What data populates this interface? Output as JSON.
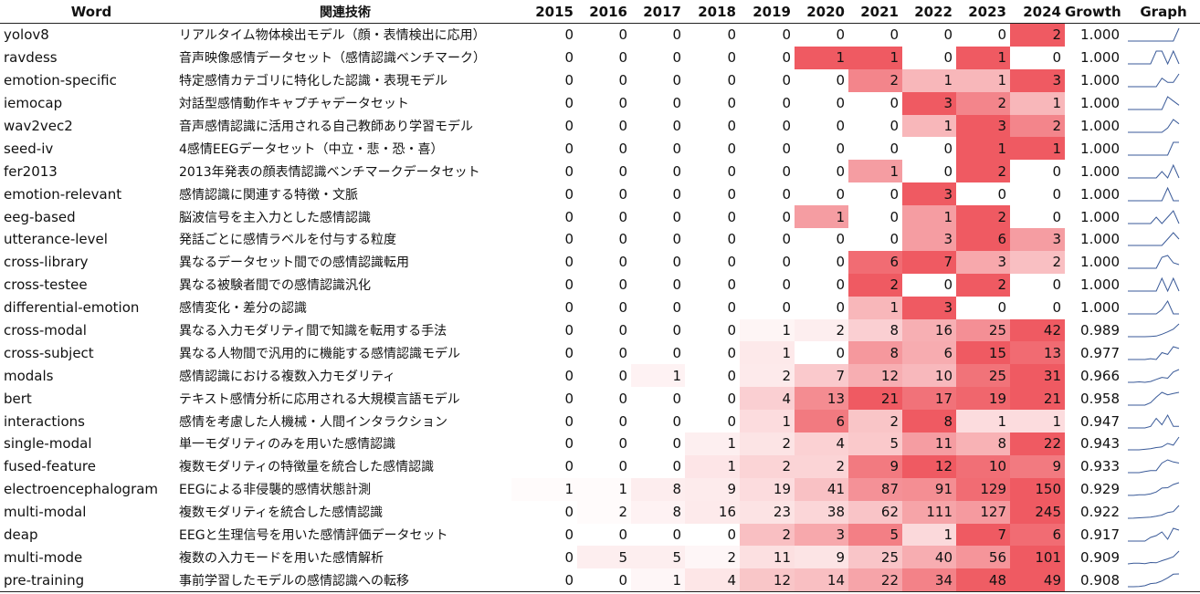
{
  "headers": {
    "word": "Word",
    "tech": "関連技術",
    "years": [
      "2015",
      "2016",
      "2017",
      "2018",
      "2019",
      "2020",
      "2021",
      "2022",
      "2023",
      "2024"
    ],
    "growth": "Growth",
    "graph": "Graph"
  },
  "colors": {
    "heat_max": "#ef5a62",
    "heat_min": "#ffffff",
    "spark": "#3a5a98"
  },
  "rows": [
    {
      "word": "yolov8",
      "tech": "リアルタイム物体検出モデル（顔・表情検出に応用）",
      "values": [
        0,
        0,
        0,
        0,
        0,
        0,
        0,
        0,
        0,
        2
      ],
      "growth": "1.000"
    },
    {
      "word": "ravdess",
      "tech": "音声映像感情データセット（感情認識ベンチマーク）",
      "values": [
        0,
        0,
        0,
        0,
        0,
        1,
        1,
        0,
        1,
        0
      ],
      "growth": "1.000"
    },
    {
      "word": "emotion-specific",
      "tech": "特定感情カテゴリに特化した認識・表現モデル",
      "values": [
        0,
        0,
        0,
        0,
        0,
        0,
        2,
        1,
        1,
        3
      ],
      "growth": "1.000"
    },
    {
      "word": "iemocap",
      "tech": "対話型感情動作キャプチャデータセット",
      "values": [
        0,
        0,
        0,
        0,
        0,
        0,
        0,
        3,
        2,
        1
      ],
      "growth": "1.000"
    },
    {
      "word": "wav2vec2",
      "tech": "音声感情認識に活用される自己教師あり学習モデル",
      "values": [
        0,
        0,
        0,
        0,
        0,
        0,
        0,
        1,
        3,
        2
      ],
      "growth": "1.000"
    },
    {
      "word": "seed-iv",
      "tech": "4感情EEGデータセット（中立・悲・恐・喜）",
      "values": [
        0,
        0,
        0,
        0,
        0,
        0,
        0,
        0,
        1,
        1
      ],
      "growth": "1.000"
    },
    {
      "word": "fer2013",
      "tech": "2013年発表の顔表情認識ベンチマークデータセット",
      "values": [
        0,
        0,
        0,
        0,
        0,
        0,
        1,
        0,
        2,
        0
      ],
      "growth": "1.000"
    },
    {
      "word": "emotion-relevant",
      "tech": "感情認識に関連する特徴・文脈",
      "values": [
        0,
        0,
        0,
        0,
        0,
        0,
        0,
        3,
        0,
        0
      ],
      "growth": "1.000"
    },
    {
      "word": "eeg-based",
      "tech": "脳波信号を主入力とした感情認識",
      "values": [
        0,
        0,
        0,
        0,
        0,
        1,
        0,
        1,
        2,
        0
      ],
      "growth": "1.000"
    },
    {
      "word": "utterance-level",
      "tech": "発話ごとに感情ラベルを付与する粒度",
      "values": [
        0,
        0,
        0,
        0,
        0,
        0,
        0,
        3,
        6,
        3
      ],
      "growth": "1.000"
    },
    {
      "word": "cross-library",
      "tech": "異なるデータセット間での感情認識転用",
      "values": [
        0,
        0,
        0,
        0,
        0,
        0,
        6,
        7,
        3,
        2
      ],
      "growth": "1.000"
    },
    {
      "word": "cross-testee",
      "tech": "異なる被験者間での感情認識汎化",
      "values": [
        0,
        0,
        0,
        0,
        0,
        0,
        2,
        0,
        2,
        0
      ],
      "growth": "1.000"
    },
    {
      "word": "differential-emotion",
      "tech": "感情変化・差分の認識",
      "values": [
        0,
        0,
        0,
        0,
        0,
        0,
        1,
        3,
        0,
        0
      ],
      "growth": "1.000"
    },
    {
      "word": "cross-modal",
      "tech": "異なる入力モダリティ間で知識を転用する手法",
      "values": [
        0,
        0,
        0,
        0,
        1,
        2,
        8,
        16,
        25,
        42
      ],
      "growth": "0.989"
    },
    {
      "word": "cross-subject",
      "tech": "異なる人物間で汎用的に機能する感情認識モデル",
      "values": [
        0,
        0,
        0,
        0,
        1,
        0,
        8,
        6,
        15,
        13
      ],
      "growth": "0.977"
    },
    {
      "word": "modals",
      "tech": "感情認識における複数入力モダリティ",
      "values": [
        0,
        0,
        1,
        0,
        2,
        7,
        12,
        10,
        25,
        31
      ],
      "growth": "0.966"
    },
    {
      "word": "bert",
      "tech": "テキスト感情分析に応用される大規模言語モデル",
      "values": [
        0,
        0,
        0,
        0,
        4,
        13,
        21,
        17,
        19,
        21
      ],
      "growth": "0.958"
    },
    {
      "word": "interactions",
      "tech": "感情を考慮した人機械・人間インタラクション",
      "values": [
        0,
        0,
        0,
        0,
        1,
        6,
        2,
        8,
        1,
        1
      ],
      "growth": "0.947"
    },
    {
      "word": "single-modal",
      "tech": "単一モダリティのみを用いた感情認識",
      "values": [
        0,
        0,
        0,
        1,
        2,
        4,
        5,
        11,
        8,
        22
      ],
      "growth": "0.943"
    },
    {
      "word": "fused-feature",
      "tech": "複数モダリティの特徴量を統合した感情認識",
      "values": [
        0,
        0,
        0,
        1,
        2,
        2,
        9,
        12,
        10,
        9
      ],
      "growth": "0.933"
    },
    {
      "word": "electroencephalogram",
      "tech": "EEGによる非侵襲的感情状態計測",
      "values": [
        1,
        1,
        8,
        9,
        19,
        41,
        87,
        91,
        129,
        150
      ],
      "growth": "0.929"
    },
    {
      "word": "multi-modal",
      "tech": "複数モダリティを統合した感情認識",
      "values": [
        0,
        2,
        8,
        16,
        23,
        38,
        62,
        111,
        127,
        245
      ],
      "growth": "0.922"
    },
    {
      "word": "deap",
      "tech": "EEGと生理信号を用いた感情評価データセット",
      "values": [
        0,
        0,
        0,
        0,
        2,
        3,
        5,
        1,
        7,
        6
      ],
      "growth": "0.917"
    },
    {
      "word": "multi-mode",
      "tech": "複数の入力モードを用いた感情解析",
      "values": [
        0,
        5,
        5,
        2,
        11,
        9,
        25,
        40,
        56,
        101
      ],
      "growth": "0.909"
    },
    {
      "word": "pre-training",
      "tech": "事前学習したモデルの感情認識への転移",
      "values": [
        0,
        0,
        1,
        4,
        12,
        14,
        22,
        34,
        48,
        49
      ],
      "growth": "0.908"
    }
  ]
}
